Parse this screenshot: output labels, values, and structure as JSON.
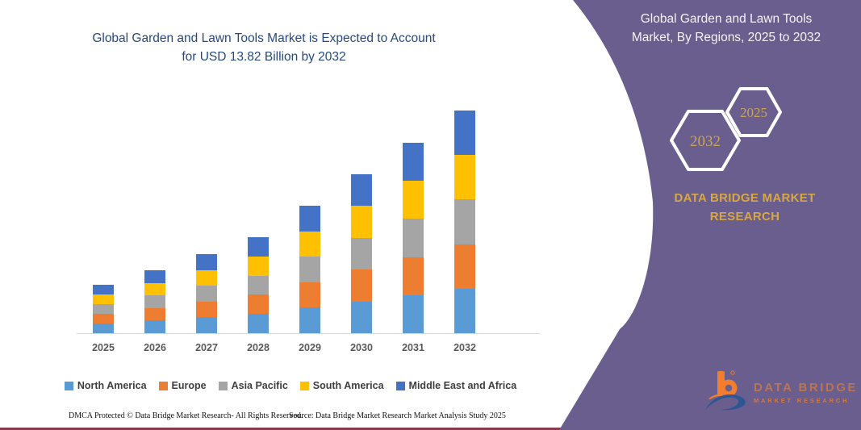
{
  "left": {
    "title_line1": "Global Garden and Lawn Tools Market is Expected to Account",
    "title_line2": "for USD 13.82 Billion by 2032",
    "footer_dmca": "DMCA Protected © Data Bridge Market Research-  All Rights Reserved.",
    "footer_source": "Source: Data Bridge Market Research  Market Analysis Study 2025"
  },
  "panel": {
    "header_line1": "Global Garden and Lawn Tools",
    "header_line2": "Market, By Regions, 2025 to 2032",
    "hex_back_year": "2032",
    "hex_front_year": "2025",
    "brand_line1": "DATA BRIDGE MARKET",
    "brand_line2": "RESEARCH",
    "logo_title": "DATA BRIDGE",
    "logo_subtitle": "MARKET RESEARCH",
    "bg_color": "#695E8D",
    "gold_color": "#D8A743"
  },
  "chart_data": {
    "type": "bar",
    "stacked": true,
    "title": "Global Garden and Lawn Tools Market, By Regions, 2025 to 2032",
    "unit": "USD Billion",
    "key_value": "USD 13.82 Billion by 2032",
    "categories": [
      "2025",
      "2026",
      "2027",
      "2028",
      "2029",
      "2030",
      "2031",
      "2032"
    ],
    "series": [
      {
        "name": "North America",
        "color": "#5B9BD5",
        "values": [
          0.6,
          0.78,
          0.98,
          1.19,
          1.58,
          1.97,
          2.36,
          2.76
        ]
      },
      {
        "name": "Europe",
        "color": "#ED7D31",
        "values": [
          0.6,
          0.78,
          0.98,
          1.19,
          1.58,
          1.97,
          2.36,
          2.76
        ]
      },
      {
        "name": "Asia Pacific",
        "color": "#A5A5A5",
        "values": [
          0.6,
          0.78,
          0.98,
          1.19,
          1.58,
          1.97,
          2.36,
          2.76
        ]
      },
      {
        "name": "South America",
        "color": "#FFC000",
        "values": [
          0.6,
          0.78,
          0.98,
          1.19,
          1.58,
          1.97,
          2.36,
          2.76
        ]
      },
      {
        "name": "Middle East and Africa",
        "color": "#4472C4",
        "values": [
          0.6,
          0.78,
          0.98,
          1.19,
          1.58,
          1.97,
          2.36,
          2.76
        ]
      }
    ],
    "totals_usd_billion_estimated": [
      3.0,
      3.9,
      4.9,
      5.95,
      7.9,
      9.85,
      11.8,
      13.82
    ],
    "xlabel": "",
    "ylabel": "",
    "ylim": [
      0,
      14.65
    ],
    "axis": {
      "y_axis_visible": false,
      "gridlines": false,
      "legend_position": "bottom"
    }
  }
}
